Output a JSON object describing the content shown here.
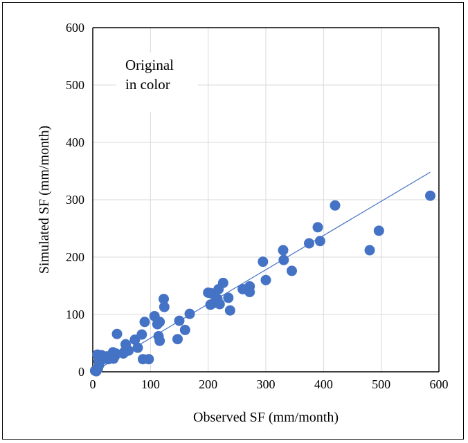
{
  "chart_data": {
    "type": "scatter",
    "xlabel": "Observed SF (mm/month)",
    "ylabel": "Simulated SF (mm/month)",
    "xlim": [
      0,
      600
    ],
    "ylim": [
      0,
      600
    ],
    "xticks": [
      "0",
      "100",
      "200",
      "300",
      "400",
      "500",
      "600"
    ],
    "yticks": [
      "0",
      "100",
      "200",
      "300",
      "400",
      "500",
      "600"
    ],
    "grid": true,
    "annotation": [
      "Original",
      "in color"
    ],
    "point_color": "#4472C4",
    "trendline": {
      "x": [
        5,
        585
      ],
      "y": [
        2,
        348
      ]
    },
    "points": [
      [
        4,
        2
      ],
      [
        6,
        1
      ],
      [
        8,
        30
      ],
      [
        9,
        6
      ],
      [
        10,
        18
      ],
      [
        11,
        12
      ],
      [
        13,
        24
      ],
      [
        15,
        29
      ],
      [
        18,
        22
      ],
      [
        20,
        26
      ],
      [
        24,
        27
      ],
      [
        27,
        22
      ],
      [
        35,
        34
      ],
      [
        36,
        23
      ],
      [
        38,
        27
      ],
      [
        40,
        32
      ],
      [
        42,
        66
      ],
      [
        53,
        32
      ],
      [
        55,
        35
      ],
      [
        57,
        48
      ],
      [
        62,
        37
      ],
      [
        73,
        56
      ],
      [
        78,
        42
      ],
      [
        85,
        65
      ],
      [
        87,
        22
      ],
      [
        90,
        87
      ],
      [
        97,
        22
      ],
      [
        107,
        97
      ],
      [
        112,
        83
      ],
      [
        114,
        62
      ],
      [
        116,
        87
      ],
      [
        116,
        54
      ],
      [
        123,
        127
      ],
      [
        124,
        113
      ],
      [
        147,
        57
      ],
      [
        150,
        89
      ],
      [
        160,
        73
      ],
      [
        168,
        101
      ],
      [
        200,
        138
      ],
      [
        204,
        117
      ],
      [
        205,
        137
      ],
      [
        210,
        120
      ],
      [
        216,
        127
      ],
      [
        218,
        144
      ],
      [
        220,
        118
      ],
      [
        226,
        155
      ],
      [
        235,
        129
      ],
      [
        238,
        107
      ],
      [
        260,
        144
      ],
      [
        272,
        149
      ],
      [
        272,
        139
      ],
      [
        295,
        192
      ],
      [
        300,
        160
      ],
      [
        330,
        212
      ],
      [
        331,
        195
      ],
      [
        345,
        176
      ],
      [
        375,
        224
      ],
      [
        390,
        252
      ],
      [
        394,
        228
      ],
      [
        420,
        290
      ],
      [
        480,
        212
      ],
      [
        496,
        246
      ],
      [
        585,
        307
      ]
    ]
  }
}
